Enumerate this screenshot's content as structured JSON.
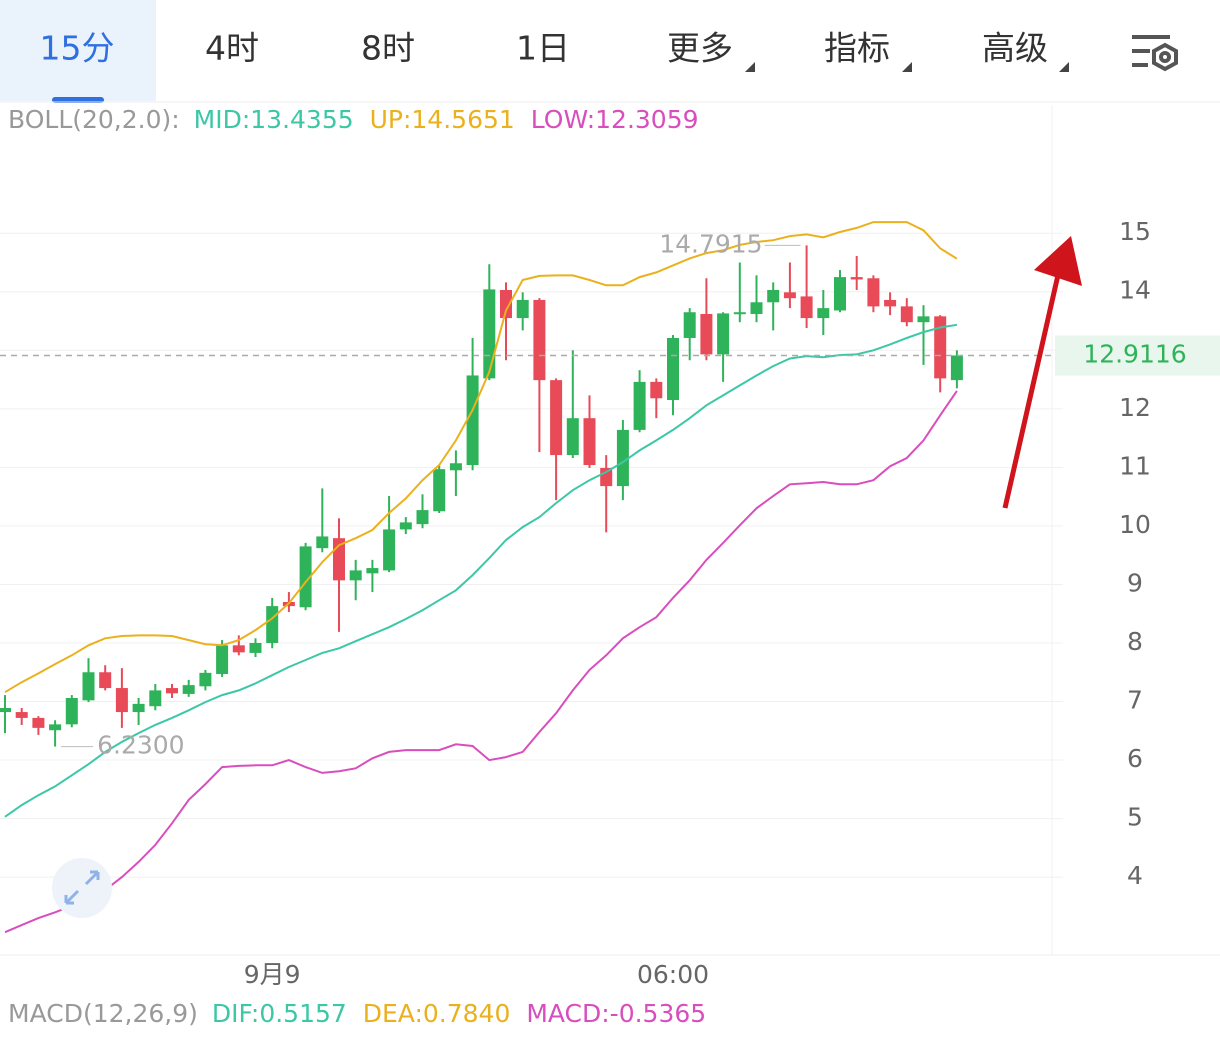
{
  "tabs": [
    "15分",
    "4时",
    "8时",
    "1日",
    "更多",
    "指标",
    "高级"
  ],
  "chart_data": {
    "type": "candlestick",
    "legend": {
      "title": "BOLL(20,2.0):",
      "items": [
        "MID:13.4355",
        "UP:14.5651",
        "LOW:12.3059"
      ]
    },
    "categories": [
      null,
      null,
      null,
      null,
      null,
      null,
      null,
      null,
      null,
      null,
      null,
      null,
      null,
      null,
      null,
      null,
      "9月9",
      null,
      null,
      null,
      null,
      null,
      null,
      null,
      null,
      null,
      null,
      null,
      null,
      null,
      null,
      null,
      null,
      null,
      null,
      null,
      null,
      null,
      null,
      null,
      "06:00",
      null,
      null,
      null,
      null,
      null,
      null,
      null,
      null,
      null,
      null,
      null,
      null,
      null,
      null,
      null,
      null,
      null
    ],
    "ohlc": [
      [
        6.82,
        7.11,
        6.46,
        6.89
      ],
      [
        6.82,
        6.89,
        6.6,
        6.72
      ],
      [
        6.72,
        6.75,
        6.43,
        6.55
      ],
      [
        6.51,
        6.68,
        6.23,
        6.61
      ],
      [
        6.61,
        7.11,
        6.56,
        7.06
      ],
      [
        7.02,
        7.74,
        6.99,
        7.5
      ],
      [
        7.5,
        7.62,
        7.19,
        7.23
      ],
      [
        7.23,
        7.57,
        6.55,
        6.82
      ],
      [
        6.82,
        7.06,
        6.6,
        6.96
      ],
      [
        6.92,
        7.3,
        6.85,
        7.19
      ],
      [
        7.23,
        7.3,
        7.06,
        7.14
      ],
      [
        7.13,
        7.37,
        7.08,
        7.28
      ],
      [
        7.26,
        7.54,
        7.19,
        7.49
      ],
      [
        7.47,
        8.05,
        7.42,
        7.96
      ],
      [
        7.96,
        8.13,
        7.79,
        7.84
      ],
      [
        7.83,
        8.08,
        7.76,
        8.0
      ],
      [
        8.0,
        8.77,
        7.91,
        8.63
      ],
      [
        8.7,
        8.87,
        8.53,
        8.63
      ],
      [
        8.61,
        9.71,
        8.56,
        9.65
      ],
      [
        9.62,
        10.64,
        9.55,
        9.82
      ],
      [
        9.79,
        10.13,
        8.19,
        9.07
      ],
      [
        9.07,
        9.42,
        8.73,
        9.24
      ],
      [
        9.19,
        9.42,
        8.87,
        9.28
      ],
      [
        9.24,
        10.51,
        9.21,
        9.94
      ],
      [
        9.94,
        10.15,
        9.86,
        10.06
      ],
      [
        10.03,
        10.54,
        9.96,
        10.27
      ],
      [
        10.25,
        11.04,
        10.22,
        10.97
      ],
      [
        10.95,
        11.29,
        10.51,
        11.07
      ],
      [
        11.04,
        13.21,
        10.95,
        12.57
      ],
      [
        12.52,
        14.47,
        12.49,
        14.04
      ],
      [
        14.03,
        14.16,
        12.83,
        13.55
      ],
      [
        13.55,
        13.99,
        13.34,
        13.86
      ],
      [
        13.86,
        13.89,
        11.26,
        12.49
      ],
      [
        12.49,
        12.52,
        10.44,
        11.21
      ],
      [
        11.21,
        13.0,
        11.16,
        11.84
      ],
      [
        11.84,
        12.23,
        10.99,
        11.04
      ],
      [
        10.99,
        11.21,
        9.89,
        10.68
      ],
      [
        10.68,
        11.81,
        10.44,
        11.64
      ],
      [
        11.64,
        12.66,
        11.6,
        12.46
      ],
      [
        12.46,
        12.52,
        11.84,
        12.18
      ],
      [
        12.15,
        13.26,
        11.89,
        13.21
      ],
      [
        13.21,
        13.72,
        12.83,
        13.65
      ],
      [
        13.62,
        14.23,
        12.83,
        12.93
      ],
      [
        12.93,
        13.65,
        12.46,
        13.63
      ],
      [
        13.62,
        14.5,
        13.48,
        13.65
      ],
      [
        13.62,
        14.28,
        13.48,
        13.82
      ],
      [
        13.82,
        14.16,
        13.34,
        14.03
      ],
      [
        13.99,
        14.5,
        13.72,
        13.89
      ],
      [
        13.92,
        14.7915,
        13.38,
        13.55
      ],
      [
        13.55,
        14.03,
        13.26,
        13.72
      ],
      [
        13.68,
        14.37,
        13.65,
        14.25
      ],
      [
        14.25,
        14.61,
        14.03,
        14.21
      ],
      [
        14.23,
        14.28,
        13.65,
        13.75
      ],
      [
        13.86,
        13.99,
        13.6,
        13.75
      ],
      [
        13.75,
        13.89,
        13.41,
        13.48
      ],
      [
        13.48,
        13.77,
        12.75,
        13.58
      ],
      [
        13.58,
        13.6,
        12.28,
        12.52
      ],
      [
        12.49,
        13.0,
        12.35,
        12.9116
      ]
    ],
    "up_color": "#2fb35a",
    "down_color": "#e84a57",
    "overlays": [
      {
        "name": "MID",
        "color": "#3cc7a6",
        "values": [
          5.03,
          5.23,
          5.4,
          5.55,
          5.74,
          5.93,
          6.14,
          6.31,
          6.46,
          6.6,
          6.72,
          6.85,
          6.99,
          7.11,
          7.19,
          7.31,
          7.45,
          7.59,
          7.71,
          7.83,
          7.91,
          8.03,
          8.15,
          8.27,
          8.41,
          8.56,
          8.73,
          8.9,
          9.16,
          9.45,
          9.76,
          9.98,
          10.15,
          10.39,
          10.61,
          10.78,
          10.92,
          11.09,
          11.29,
          11.46,
          11.64,
          11.84,
          12.06,
          12.23,
          12.4,
          12.57,
          12.73,
          12.86,
          12.9,
          12.88,
          12.92,
          12.93,
          13.0,
          13.1,
          13.21,
          13.31,
          13.39,
          13.4355
        ]
      },
      {
        "name": "UP",
        "color": "#ebb11c",
        "values": [
          7.16,
          7.33,
          7.48,
          7.64,
          7.79,
          7.96,
          8.08,
          8.12,
          8.13,
          8.13,
          8.12,
          8.05,
          7.98,
          7.96,
          8.05,
          8.22,
          8.42,
          8.68,
          9.04,
          9.38,
          9.67,
          9.79,
          9.93,
          10.22,
          10.47,
          10.78,
          11.04,
          11.46,
          11.98,
          12.63,
          13.68,
          14.2,
          14.27,
          14.28,
          14.28,
          14.2,
          14.11,
          14.11,
          14.25,
          14.33,
          14.45,
          14.57,
          14.66,
          14.71,
          14.8,
          14.85,
          14.88,
          14.95,
          14.98,
          14.93,
          15.02,
          15.09,
          15.19,
          15.19,
          15.19,
          15.05,
          14.74,
          14.5651
        ]
      },
      {
        "name": "LOW",
        "color": "#d84ebe",
        "values": [
          3.06,
          3.18,
          3.3,
          3.4,
          3.51,
          3.61,
          3.78,
          4.0,
          4.26,
          4.55,
          4.92,
          5.32,
          5.59,
          5.88,
          5.9,
          5.91,
          5.91,
          6.0,
          5.88,
          5.78,
          5.81,
          5.86,
          6.03,
          6.14,
          6.17,
          6.17,
          6.17,
          6.27,
          6.24,
          6.0,
          6.05,
          6.14,
          6.48,
          6.8,
          7.19,
          7.54,
          7.79,
          8.08,
          8.27,
          8.44,
          8.77,
          9.07,
          9.42,
          9.71,
          10.01,
          10.3,
          10.51,
          10.71,
          10.73,
          10.75,
          10.71,
          10.71,
          10.78,
          11.02,
          11.16,
          11.46,
          11.89,
          12.3059
        ]
      }
    ],
    "ylim": [
      2.67,
      17.19
    ],
    "yticks": [
      4,
      5,
      6,
      7,
      8,
      9,
      10,
      11,
      12,
      13,
      14,
      15
    ],
    "grid": true,
    "last_price": 12.9116,
    "high_annotation": 14.7915,
    "low_annotation": {
      "value": 6.23,
      "label": "6.2300"
    }
  },
  "macd_legend": {
    "title": "MACD(12,26,9)",
    "items": [
      "DIF:0.5157",
      "DEA:0.7840",
      "MACD:-0.5365"
    ]
  }
}
